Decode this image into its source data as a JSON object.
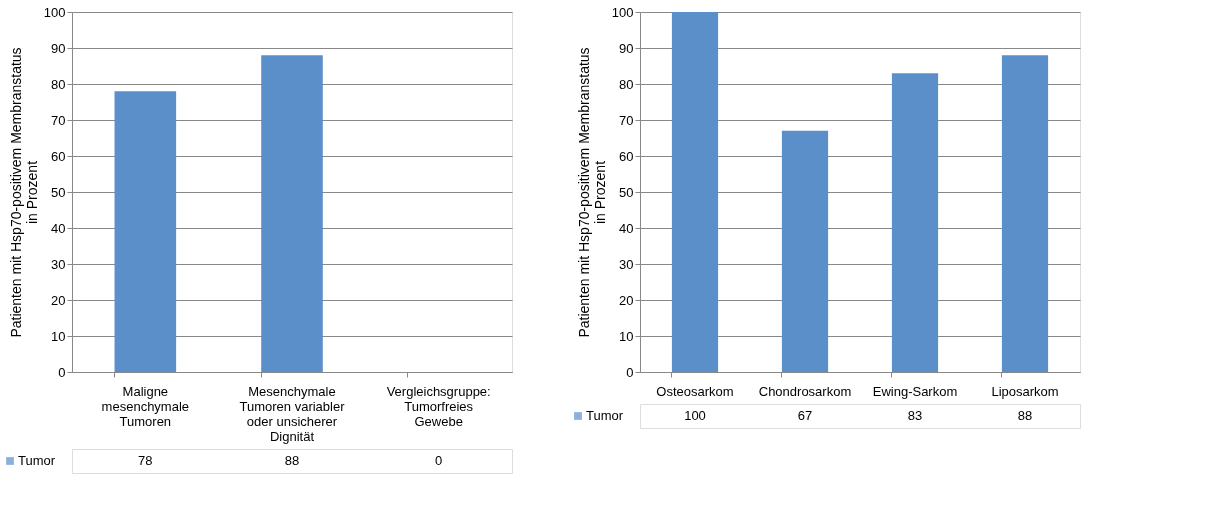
{
  "chart_data": [
    {
      "type": "bar",
      "ylabel": "Patienten mit Hsp70-positivem Membranstatus in Prozent",
      "categories": [
        "Maligne mesenchymale Tumoren",
        "Mesenchymale Tumoren variabler oder unsicherer Dignität",
        "Vergleichsgruppe: Tumorfreies Gewebe"
      ],
      "series": [
        {
          "name": "Tumor",
          "color": "#5b8fc9",
          "values": [
            78,
            88,
            0
          ]
        }
      ],
      "ylim": [
        0,
        100
      ],
      "yticks": [
        0,
        10,
        20,
        30,
        40,
        50,
        60,
        70,
        80,
        90,
        100
      ],
      "grid": "y",
      "legend": "bottom left",
      "data_labels": true
    },
    {
      "type": "bar",
      "ylabel": "Patienten mit Hsp70-positivem Membranstatus in Prozent",
      "categories": [
        "Osteosarkom",
        "Chondrosarkom",
        "Ewing-Sarkom",
        "Liposarkom"
      ],
      "series": [
        {
          "name": "Tumor",
          "color": "#5b8fc9",
          "values": [
            100,
            67,
            83,
            88
          ]
        }
      ],
      "ylim": [
        0,
        100
      ],
      "yticks": [
        0,
        10,
        20,
        30,
        40,
        50,
        60,
        70,
        80,
        90,
        100
      ],
      "grid": "y",
      "legend": "bottom left",
      "data_labels": true
    }
  ]
}
